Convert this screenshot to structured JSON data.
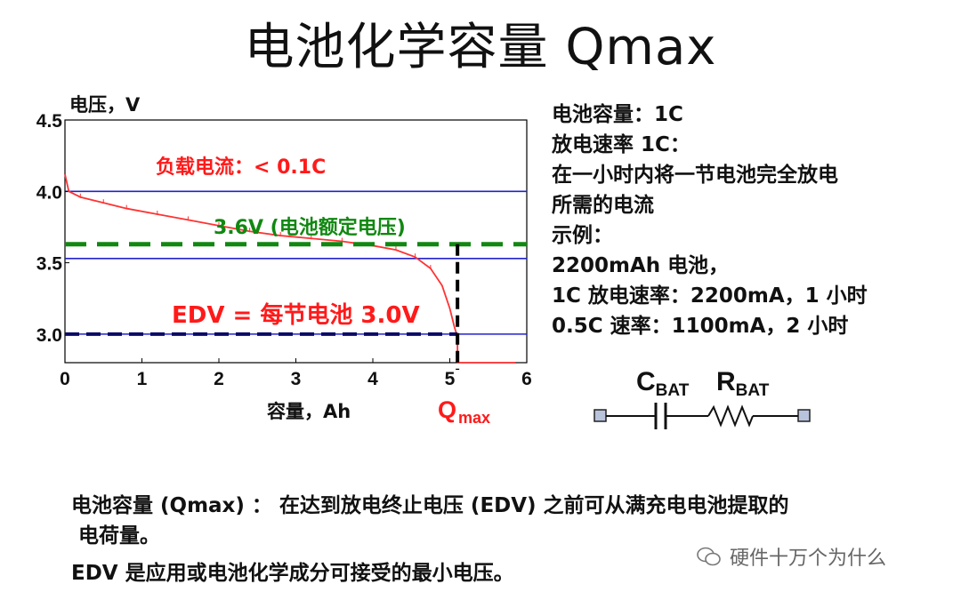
{
  "title": "电池化学容量 Qmax",
  "chart_data": {
    "type": "line",
    "ylabel": "电压，V",
    "xlabel": "容量，Ah",
    "xlim": [
      0,
      6
    ],
    "ylim": [
      2.8,
      4.5
    ],
    "xticks": [
      "0",
      "1",
      "2",
      "3",
      "4",
      "5",
      "6"
    ],
    "yticks": [
      {
        "v": 4.5,
        "label": "4.5"
      },
      {
        "v": 4.0,
        "label": "4.0"
      },
      {
        "v": 3.5,
        "label": "3.5"
      },
      {
        "v": 3.0,
        "label": "3.0"
      }
    ],
    "hlines": [
      4.0,
      3.53,
      3.0
    ],
    "dashed_36_y": 3.63,
    "edv_y": 3.0,
    "qmax_x": 5.1,
    "series": [
      {
        "color": "#ff3333",
        "points": [
          [
            0.0,
            4.12
          ],
          [
            0.05,
            4.0
          ],
          [
            0.2,
            3.96
          ],
          [
            0.5,
            3.92
          ],
          [
            0.8,
            3.88
          ],
          [
            1.2,
            3.84
          ],
          [
            1.6,
            3.8
          ],
          [
            2.0,
            3.76
          ],
          [
            2.4,
            3.72
          ],
          [
            2.8,
            3.69
          ],
          [
            3.2,
            3.67
          ],
          [
            3.6,
            3.65
          ],
          [
            4.0,
            3.62
          ],
          [
            4.3,
            3.59
          ],
          [
            4.55,
            3.54
          ],
          [
            4.75,
            3.46
          ],
          [
            4.9,
            3.34
          ],
          [
            5.0,
            3.18
          ],
          [
            5.06,
            3.05
          ],
          [
            5.1,
            2.98
          ],
          [
            5.1,
            2.8
          ],
          [
            5.85,
            2.8
          ]
        ]
      }
    ],
    "annotations": {
      "load_current": "负载电流：< 0.1C",
      "rated": "3.6V (电池额定电压)",
      "edv": "EDV = 每节电池 3.0V",
      "qmax_main": "Q",
      "qmax_sub": "max"
    },
    "colors": {
      "curve": "#ff3333",
      "ref_line": "#2222cc",
      "dashed_green": "#118811",
      "edv_dash": "#0a0a66",
      "annotation_red": "#ff1a1a",
      "annotation_green": "#118811"
    }
  },
  "right_text": [
    "电池容量：1C",
    "放电速率 1C：",
    "在一小时内将一节电池完全放电",
    "所需的电流",
    "示例：",
    "2200mAh 电池，",
    "1C 放电速率：2200mA，1 小时",
    "0.5C 速率：1100mA，2 小时"
  ],
  "circuit": {
    "c_label": "C",
    "c_sub": "BAT",
    "r_label": "R",
    "r_sub": "BAT"
  },
  "bottom": {
    "line1": "电池容量 (Qmax) ： 在达到放电终止电压 (EDV) 之前可从满充电电池提取的",
    "line2": "电荷量。",
    "line3": "EDV 是应用或电池化学成分可接受的最小电压。"
  },
  "watermark": "硬件十万个为什么"
}
